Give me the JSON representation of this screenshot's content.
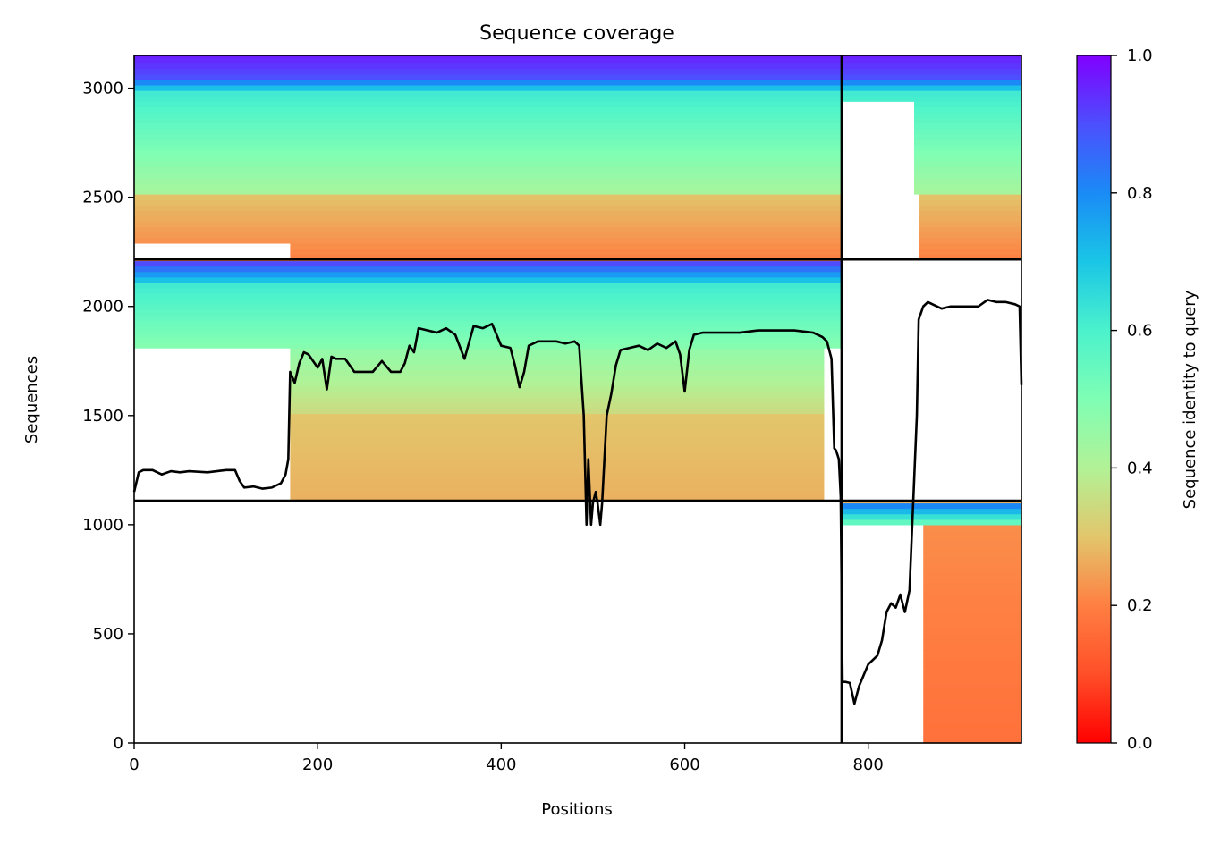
{
  "chart_data": {
    "type": "heatmap",
    "title": "Sequence coverage",
    "xlabel": "Positions",
    "ylabel": "Sequences",
    "xlim": [
      0,
      967
    ],
    "ylim": [
      0,
      3150
    ],
    "x_ticks": [
      0,
      200,
      400,
      600,
      800
    ],
    "y_ticks": [
      0,
      500,
      1000,
      1500,
      2000,
      2500,
      3000
    ],
    "grid": false,
    "colormap": "rainbow_r",
    "colorbar": {
      "label": "Sequence identity to query",
      "range": [
        0,
        1
      ],
      "ticks": [
        0.0,
        0.2,
        0.4,
        0.6,
        0.8,
        1.0
      ],
      "tick_labels": [
        "0.0",
        "0.2",
        "0.4",
        "0.6",
        "0.8",
        "1.0"
      ]
    },
    "block_boundaries": {
      "position_split": 771,
      "sequence_splits": [
        1110,
        2215
      ]
    },
    "coverage_line": {
      "color": "#000000",
      "x": [
        0,
        5,
        10,
        20,
        30,
        40,
        50,
        60,
        80,
        100,
        110,
        115,
        120,
        130,
        140,
        150,
        160,
        165,
        168,
        170,
        175,
        180,
        185,
        190,
        200,
        205,
        210,
        215,
        220,
        230,
        240,
        250,
        260,
        270,
        280,
        290,
        295,
        300,
        305,
        310,
        320,
        330,
        340,
        350,
        360,
        370,
        380,
        390,
        400,
        410,
        415,
        420,
        425,
        430,
        435,
        440,
        450,
        460,
        470,
        480,
        485,
        490,
        493,
        495,
        498,
        500,
        503,
        505,
        508,
        510,
        515,
        520,
        525,
        530,
        540,
        550,
        560,
        570,
        580,
        590,
        595,
        600,
        605,
        610,
        620,
        640,
        660,
        680,
        700,
        720,
        740,
        750,
        755,
        760,
        763,
        765,
        768,
        770,
        772,
        775,
        780,
        785,
        790,
        800,
        805,
        810,
        815,
        820,
        825,
        830,
        835,
        838,
        840,
        843,
        845,
        848,
        850,
        853,
        855,
        860,
        865,
        870,
        880,
        890,
        900,
        910,
        920,
        930,
        940,
        950,
        960,
        965,
        967
      ],
      "y": [
        1150,
        1240,
        1250,
        1250,
        1230,
        1245,
        1240,
        1245,
        1240,
        1250,
        1250,
        1200,
        1170,
        1175,
        1165,
        1170,
        1190,
        1230,
        1300,
        1700,
        1650,
        1740,
        1790,
        1780,
        1720,
        1760,
        1620,
        1770,
        1760,
        1760,
        1700,
        1700,
        1700,
        1750,
        1700,
        1700,
        1740,
        1820,
        1790,
        1900,
        1890,
        1880,
        1900,
        1870,
        1760,
        1910,
        1900,
        1920,
        1820,
        1810,
        1730,
        1630,
        1700,
        1820,
        1830,
        1840,
        1840,
        1840,
        1830,
        1840,
        1820,
        1500,
        1000,
        1300,
        1000,
        1100,
        1150,
        1100,
        1000,
        1100,
        1500,
        1600,
        1730,
        1800,
        1810,
        1820,
        1800,
        1830,
        1810,
        1840,
        1780,
        1610,
        1800,
        1870,
        1880,
        1880,
        1880,
        1890,
        1890,
        1890,
        1880,
        1860,
        1840,
        1760,
        1350,
        1340,
        1300,
        1130,
        280,
        280,
        275,
        180,
        260,
        360,
        380,
        400,
        470,
        600,
        640,
        620,
        680,
        630,
        600,
        660,
        700,
        1000,
        1200,
        1500,
        1940,
        2000,
        2020,
        2010,
        1990,
        2000,
        2000,
        2000,
        2000,
        2030,
        2020,
        2020,
        2010,
        2000,
        1640
      ]
    },
    "blocks": [
      {
        "name": "upper-left",
        "x_range": [
          0,
          771
        ],
        "y_range": [
          2215,
          3150
        ]
      },
      {
        "name": "upper-right",
        "x_range": [
          771,
          967
        ],
        "y_range": [
          2215,
          3150
        ]
      },
      {
        "name": "middle-left",
        "x_range": [
          0,
          771
        ],
        "y_range": [
          1110,
          2215
        ]
      },
      {
        "name": "middle-right",
        "x_range": [
          771,
          967
        ],
        "y_range": [
          1110,
          2215
        ]
      },
      {
        "name": "lower-right",
        "x_range": [
          771,
          967
        ],
        "y_range": [
          0,
          1110
        ]
      }
    ]
  }
}
